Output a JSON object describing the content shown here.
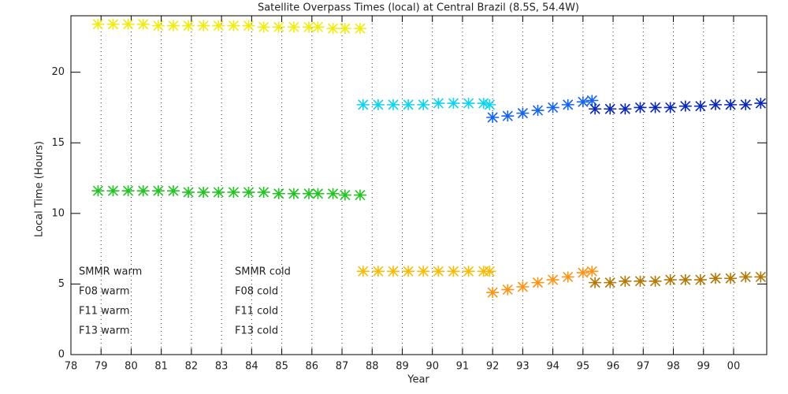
{
  "chart_data": {
    "type": "scatter",
    "title": "Satellite Overpass Times (local) at Central Brazil (8.5S, 54.4W)",
    "x_label": "Year",
    "y_label": "Local Time (Hours)",
    "xlim": [
      78,
      101.1
    ],
    "ylim": [
      0,
      24
    ],
    "xticks": [
      78,
      79,
      80,
      81,
      82,
      83,
      84,
      85,
      86,
      87,
      88,
      89,
      90,
      91,
      92,
      93,
      94,
      95,
      96,
      97,
      98,
      99,
      {
        "value": 100,
        "label": "00"
      }
    ],
    "yticks": [
      0,
      5,
      10,
      15,
      20
    ],
    "grid": true,
    "legend": "lower left",
    "series": [
      {
        "name": "SMMR warm",
        "color": "#22c422",
        "x": [
          78.9,
          79.4,
          79.9,
          80.4,
          80.9,
          81.4,
          81.9,
          82.4,
          82.9,
          83.4,
          83.9,
          84.4,
          84.9,
          85.4,
          85.9,
          86.2,
          86.7,
          87.1,
          87.6
        ],
        "values": [
          11.6,
          11.6,
          11.6,
          11.6,
          11.6,
          11.6,
          11.5,
          11.5,
          11.5,
          11.5,
          11.5,
          11.5,
          11.4,
          11.4,
          11.4,
          11.4,
          11.4,
          11.3,
          11.3
        ]
      },
      {
        "name": "F08 warm",
        "color": "#10d4ee",
        "x": [
          87.7,
          88.2,
          88.7,
          89.2,
          89.7,
          90.2,
          90.7,
          91.2,
          91.7,
          91.9
        ],
        "values": [
          17.7,
          17.7,
          17.7,
          17.7,
          17.7,
          17.8,
          17.8,
          17.8,
          17.8,
          17.7
        ]
      },
      {
        "name": "F11 warm",
        "color": "#1464f0",
        "x": [
          92.0,
          92.5,
          93.0,
          93.5,
          94.0,
          94.5,
          95.0,
          95.3
        ],
        "values": [
          16.8,
          16.9,
          17.1,
          17.3,
          17.5,
          17.7,
          17.9,
          18.0
        ]
      },
      {
        "name": "F13 warm",
        "color": "#0a28b4",
        "x": [
          95.4,
          95.9,
          96.4,
          96.9,
          97.4,
          97.9,
          98.4,
          98.9,
          99.4,
          99.9,
          100.4,
          100.9
        ],
        "values": [
          17.4,
          17.4,
          17.4,
          17.5,
          17.5,
          17.5,
          17.6,
          17.6,
          17.7,
          17.7,
          17.7,
          17.8
        ]
      },
      {
        "name": "SMMR cold",
        "color": "#f0ec10",
        "x": [
          78.9,
          79.4,
          79.9,
          80.4,
          80.9,
          81.4,
          81.9,
          82.4,
          82.9,
          83.4,
          83.9,
          84.4,
          84.9,
          85.4,
          85.9,
          86.2,
          86.7,
          87.1,
          87.6
        ],
        "values": [
          23.4,
          23.4,
          23.4,
          23.4,
          23.3,
          23.3,
          23.3,
          23.3,
          23.3,
          23.3,
          23.3,
          23.2,
          23.2,
          23.2,
          23.2,
          23.2,
          23.1,
          23.1,
          23.1
        ]
      },
      {
        "name": "F08 cold",
        "color": "#f8bc08",
        "x": [
          87.7,
          88.2,
          88.7,
          89.2,
          89.7,
          90.2,
          90.7,
          91.2,
          91.7,
          91.9
        ],
        "values": [
          5.9,
          5.9,
          5.9,
          5.9,
          5.9,
          5.9,
          5.9,
          5.9,
          5.9,
          5.9
        ]
      },
      {
        "name": "F11 cold",
        "color": "#fc9418",
        "x": [
          92.0,
          92.5,
          93.0,
          93.5,
          94.0,
          94.5,
          95.0,
          95.3
        ],
        "values": [
          4.4,
          4.6,
          4.8,
          5.1,
          5.3,
          5.5,
          5.8,
          5.9
        ]
      },
      {
        "name": "F13 cold",
        "color": "#b47808",
        "x": [
          95.4,
          95.9,
          96.4,
          96.9,
          97.4,
          97.9,
          98.4,
          98.9,
          99.4,
          99.9,
          100.4,
          100.9
        ],
        "values": [
          5.1,
          5.1,
          5.2,
          5.2,
          5.2,
          5.3,
          5.3,
          5.3,
          5.4,
          5.4,
          5.5,
          5.5
        ]
      }
    ]
  }
}
